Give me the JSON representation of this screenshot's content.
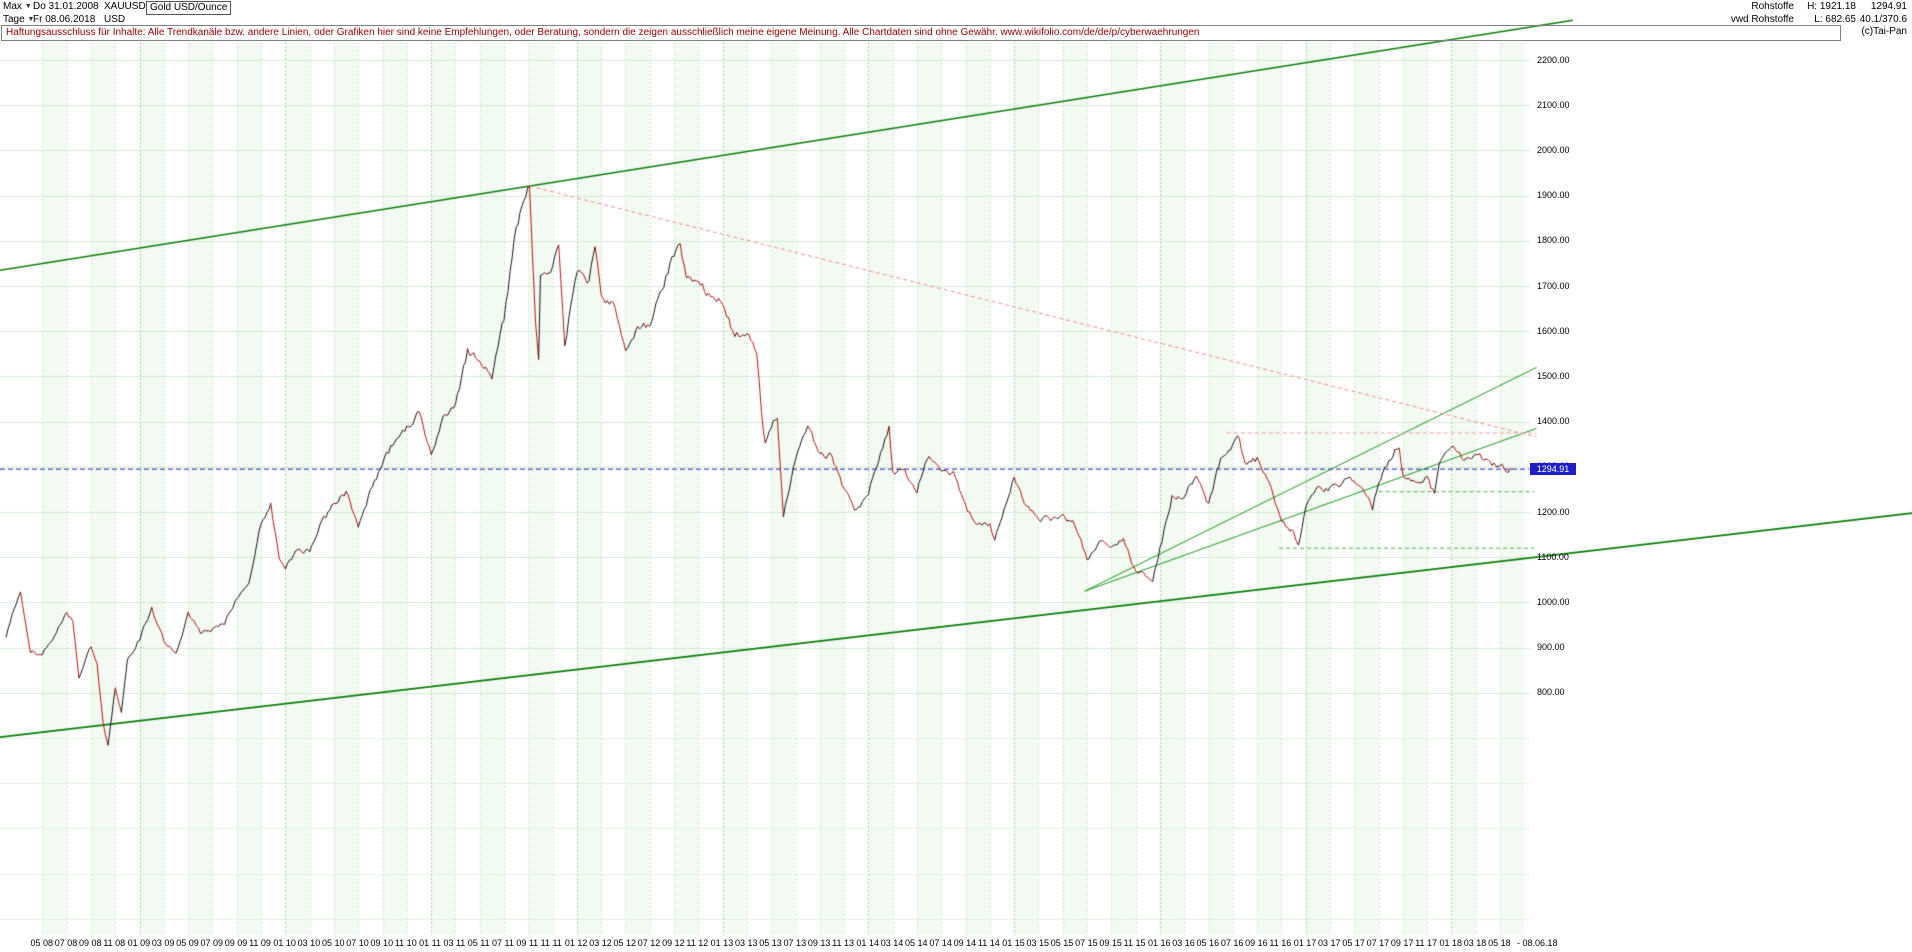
{
  "header": {
    "range_selector": "Max",
    "start_date": "Do 31.01.2008",
    "symbol": "XAUUSD",
    "instrument": "Gold USD/Ounce",
    "period_selector": "Tage",
    "end_date": "Fr 08.06.2018",
    "currency": "USD",
    "right": {
      "category": "Rohstoffe",
      "high": "H: 1921.18",
      "last": "1294.91",
      "provider": "vwd Rohstoffe",
      "low": "L: 682.65",
      "range": "40.1/370.6"
    }
  },
  "disclaimer": {
    "text": "Haftungsausschluss für Inhalte: Alle Trendkanäle bzw. andere Linien, oder Grafiken hier sind keine Empfehlungen, oder Beratung, sondern die zeigen ausschließlich meine eigene Meinung. Alle Chartdaten sind ohne Gewähr.  www.wikifolio.com/de/de/p/cyberwaehrungen",
    "copyright": "(c)Tai-Pan"
  },
  "axis": {
    "current_price": "1294.91",
    "y_labels": [
      "2200.00",
      "2100.00",
      "2000.00",
      "1900.00",
      "1800.00",
      "1700.00",
      "1600.00",
      "1500.00",
      "1400.00",
      "1300.00",
      "1200.00",
      "1100.00",
      "1000.00",
      "900.00",
      "800.00"
    ],
    "x_labels": [
      "05 08",
      "07 08",
      "09 08",
      "11 08",
      "01 09",
      "03 09",
      "05 09",
      "07 09",
      "09 09",
      "11 09",
      "01 10",
      "03 10",
      "05 10",
      "07 10",
      "09 10",
      "11 10",
      "01 11",
      "03 11",
      "05 11",
      "07 11",
      "09 11",
      "11 11",
      "01 12",
      "03 12",
      "05 12",
      "07 12",
      "09 12",
      "11 12",
      "01 13",
      "03 13",
      "05 13",
      "07 13",
      "09 13",
      "11 13",
      "01 14",
      "03 14",
      "05 14",
      "07 14",
      "09 14",
      "11 14",
      "01 15",
      "03 15",
      "05 15",
      "07 15",
      "09 15",
      "11 15",
      "01 16",
      "03 16",
      "05 16",
      "07 16",
      "09 16",
      "11 16",
      "01 17",
      "03 17",
      "05 17",
      "07 17",
      "09 17",
      "11 17",
      "01 18",
      "03 18",
      "05 18"
    ],
    "x_end_label": "- 08.06.18"
  },
  "colors": {
    "grid_h": "#d4ecd4",
    "grid_v": "#cdeacd",
    "grid_v_year": "#a9d8a9",
    "stripe": "#f2faf2",
    "price_up": "#151515",
    "price_down": "#c01010",
    "trend_green": "#067d06",
    "trend_green_thin": "#1d9a1d",
    "trend_green_dashed": "#4dbb4d",
    "trend_pink": "#f09090",
    "current_blue": "#2222cc",
    "tag_bg": "#1f1fc8"
  },
  "chart_data": {
    "type": "line",
    "title": "Gold USD/Ounce",
    "symbol": "XAUUSD",
    "timeframe": "Tage",
    "date_range": [
      "Do 31.01.2008",
      "Fr 08.06.2018"
    ],
    "high": 1921.18,
    "low": 682.65,
    "last": 1294.91,
    "y_axis": {
      "label_min": 800,
      "label_max": 2200,
      "step": 100,
      "unit": "USD/Ounce"
    },
    "x_axis": {
      "unit": "months since 2008-02",
      "label_every_months": 2,
      "first_label_month": 3
    },
    "legend": "none",
    "grid": true,
    "series": [
      {
        "name": "Gold USD close (daily, approximated monthly anchors)",
        "points": [
          [
            0,
            923
          ],
          [
            0.5,
            975
          ],
          [
            1.2,
            1028
          ],
          [
            2,
            890
          ],
          [
            3,
            885
          ],
          [
            4,
            930
          ],
          [
            5,
            975
          ],
          [
            5.5,
            960
          ],
          [
            6,
            833
          ],
          [
            7,
            905
          ],
          [
            7.5,
            860
          ],
          [
            8,
            730
          ],
          [
            8.4,
            683
          ],
          [
            9,
            815
          ],
          [
            9.5,
            755
          ],
          [
            10,
            870
          ],
          [
            11,
            919
          ],
          [
            12,
            989
          ],
          [
            13,
            916
          ],
          [
            14,
            883
          ],
          [
            15,
            975
          ],
          [
            16,
            934
          ],
          [
            17,
            939
          ],
          [
            18,
            955
          ],
          [
            19,
            1008
          ],
          [
            20,
            1040
          ],
          [
            21,
            1175
          ],
          [
            21.8,
            1215
          ],
          [
            22.5,
            1096
          ],
          [
            23,
            1078
          ],
          [
            24,
            1118
          ],
          [
            25,
            1115
          ],
          [
            26,
            1179
          ],
          [
            27,
            1215
          ],
          [
            28,
            1244
          ],
          [
            29,
            1169
          ],
          [
            30,
            1246
          ],
          [
            31,
            1307
          ],
          [
            32,
            1357
          ],
          [
            33,
            1385
          ],
          [
            34,
            1421
          ],
          [
            35,
            1327
          ],
          [
            36,
            1411
          ],
          [
            37,
            1439
          ],
          [
            38,
            1556
          ],
          [
            39,
            1536
          ],
          [
            40,
            1502
          ],
          [
            41,
            1628
          ],
          [
            42,
            1826
          ],
          [
            42.8,
            1900
          ],
          [
            43.1,
            1921
          ],
          [
            43.35,
            1755
          ],
          [
            43.6,
            1620
          ],
          [
            43.85,
            1540
          ],
          [
            44,
            1722
          ],
          [
            45,
            1746
          ],
          [
            45.5,
            1800
          ],
          [
            46,
            1566
          ],
          [
            47,
            1737
          ],
          [
            48,
            1711
          ],
          [
            48.5,
            1790
          ],
          [
            49,
            1668
          ],
          [
            50,
            1664
          ],
          [
            51,
            1558
          ],
          [
            52,
            1604
          ],
          [
            53,
            1615
          ],
          [
            54,
            1692
          ],
          [
            55,
            1772
          ],
          [
            55.5,
            1792
          ],
          [
            56,
            1720
          ],
          [
            57,
            1715
          ],
          [
            58,
            1675
          ],
          [
            59,
            1661
          ],
          [
            60,
            1588
          ],
          [
            61,
            1598
          ],
          [
            61.8,
            1560
          ],
          [
            62.2,
            1420
          ],
          [
            62.5,
            1350
          ],
          [
            63,
            1387
          ],
          [
            63.5,
            1413
          ],
          [
            64,
            1192
          ],
          [
            65,
            1313
          ],
          [
            66,
            1395
          ],
          [
            67,
            1327
          ],
          [
            68,
            1324
          ],
          [
            69,
            1253
          ],
          [
            70,
            1202
          ],
          [
            71,
            1244
          ],
          [
            72,
            1326
          ],
          [
            72.7,
            1385
          ],
          [
            73,
            1291
          ],
          [
            74,
            1288
          ],
          [
            75,
            1250
          ],
          [
            76,
            1327
          ],
          [
            77,
            1282
          ],
          [
            78,
            1287
          ],
          [
            79,
            1208
          ],
          [
            80,
            1173
          ],
          [
            81,
            1175
          ],
          [
            81.4,
            1140
          ],
          [
            82,
            1184
          ],
          [
            83,
            1283
          ],
          [
            84,
            1213
          ],
          [
            85,
            1184
          ],
          [
            86,
            1184
          ],
          [
            87,
            1190
          ],
          [
            88,
            1171
          ],
          [
            89,
            1095
          ],
          [
            90,
            1134
          ],
          [
            91,
            1115
          ],
          [
            92,
            1142
          ],
          [
            93,
            1065
          ],
          [
            94,
            1061
          ],
          [
            94.4,
            1048
          ],
          [
            95,
            1118
          ],
          [
            96,
            1234
          ],
          [
            97,
            1232
          ],
          [
            98,
            1285
          ],
          [
            99,
            1215
          ],
          [
            100,
            1322
          ],
          [
            101,
            1351
          ],
          [
            101.4,
            1372
          ],
          [
            102,
            1309
          ],
          [
            103,
            1316
          ],
          [
            104,
            1273
          ],
          [
            105,
            1178
          ],
          [
            106,
            1152
          ],
          [
            106.4,
            1125
          ],
          [
            107,
            1212
          ],
          [
            108,
            1248
          ],
          [
            109,
            1249
          ],
          [
            110,
            1268
          ],
          [
            111,
            1269
          ],
          [
            112,
            1242
          ],
          [
            112.5,
            1210
          ],
          [
            113,
            1269
          ],
          [
            114,
            1320
          ],
          [
            114.7,
            1350
          ],
          [
            115,
            1280
          ],
          [
            116,
            1271
          ],
          [
            117,
            1275
          ],
          [
            117.6,
            1240
          ],
          [
            118,
            1303
          ],
          [
            119,
            1345
          ],
          [
            120,
            1318
          ],
          [
            121,
            1325
          ],
          [
            122,
            1315
          ],
          [
            123,
            1298
          ],
          [
            124,
            1294.91
          ]
        ]
      }
    ],
    "trendlines": [
      {
        "name": "upper-channel-line",
        "m1": -0.5,
        "p1": 1735,
        "m2": 129,
        "p2": 2288,
        "color": "#067d06",
        "width": 1.4,
        "dash": []
      },
      {
        "name": "lower-channel-line",
        "m1": -0.5,
        "p1": 702,
        "m2": 157,
        "p2": 1198,
        "color": "#067d06",
        "width": 1.8,
        "dash": []
      },
      {
        "name": "support-fan-steep",
        "m1": 88.8,
        "p1": 1025,
        "m2": 126,
        "p2": 1520,
        "color": "#1d9a1d",
        "width": 1,
        "dash": []
      },
      {
        "name": "support-fan-shallow",
        "m1": 88.8,
        "p1": 1025,
        "m2": 126,
        "p2": 1385,
        "color": "#1d9a1d",
        "width": 1,
        "dash": []
      },
      {
        "name": "green-dashed-resistance",
        "m1": 113,
        "p1": 1245,
        "m2": 125.8,
        "p2": 1245,
        "color": "#4dbb4d",
        "width": 1,
        "dash": [
          4,
          3
        ]
      },
      {
        "name": "green-dashed-support",
        "m1": 104.8,
        "p1": 1120,
        "m2": 125.8,
        "p2": 1120,
        "color": "#4dbb4d",
        "width": 1,
        "dash": [
          4,
          3
        ]
      },
      {
        "name": "pink-downtrend-from-peak",
        "m1": 43.1,
        "p1": 1921,
        "m2": 126,
        "p2": 1366,
        "color": "#f09090",
        "width": 1,
        "dash": [
          4,
          3
        ]
      },
      {
        "name": "pink-horizontal-resistance",
        "m1": 100.5,
        "p1": 1375,
        "m2": 126,
        "p2": 1375,
        "color": "#f0a0a0",
        "width": 1,
        "dash": [
          4,
          3
        ]
      },
      {
        "name": "current-price-line",
        "m1": -0.5,
        "p1": 1294.91,
        "m2": 125.4,
        "p2": 1294.91,
        "color": "#2222cc",
        "width": 1,
        "dash": [
          5,
          3
        ]
      }
    ]
  }
}
